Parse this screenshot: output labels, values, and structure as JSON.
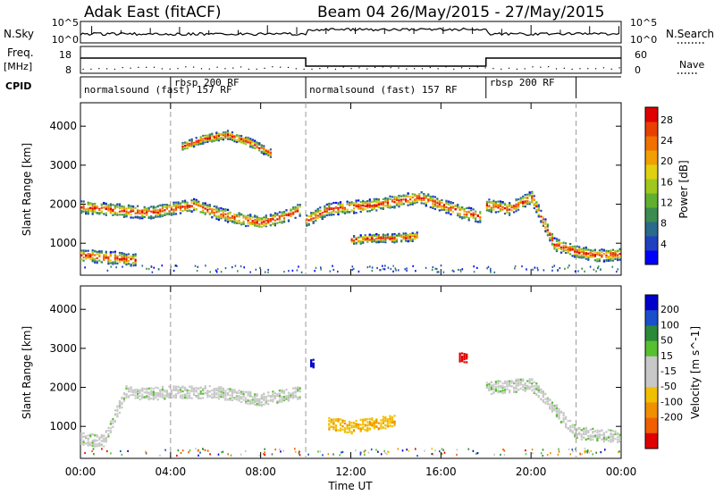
{
  "title": "Adak East (fitACF)",
  "beam_info": "Beam 04 26/May/2015 - 27/May/2015",
  "left_labels": {
    "nsky": "N.Sky",
    "freq": "Freq.",
    "freq_unit": "[MHz]",
    "cpid": "CPID"
  },
  "right_labels": {
    "nsearch": "N.Search",
    "nave": "Nave"
  },
  "nsky_ticks": [
    "10^5",
    "10^0"
  ],
  "nsearch_ticks": [
    "10^5",
    "10^0"
  ],
  "freq_ticks": [
    "18",
    "8"
  ],
  "nave_ticks": [
    "60",
    "0"
  ],
  "cpid_segments": [
    {
      "label": "normalsound (fast) 157 RF",
      "start": 0,
      "end": 4
    },
    {
      "label": "rbsp 200 RF",
      "start": 4,
      "end": 10
    },
    {
      "label": "normalsound (fast) 157 RF",
      "start": 10,
      "end": 18
    },
    {
      "label": "rbsp 200 RF",
      "start": 18,
      "end": 22
    }
  ],
  "x_ticks": [
    "00:00",
    "04:00",
    "08:00",
    "12:00",
    "16:00",
    "20:00",
    "00:00"
  ],
  "x_label": "Time UT",
  "y_label": "Slant Range [km]",
  "y_ticks": [
    "1000",
    "2000",
    "3000",
    "4000"
  ],
  "power_colorbar": {
    "label": "Power [dB]",
    "ticks": [
      "4",
      "8",
      "12",
      "16",
      "20",
      "24",
      "28"
    ],
    "colors": [
      "#0000ff",
      "#2040c0",
      "#2a6a8a",
      "#3c8c50",
      "#60b030",
      "#a0c81c",
      "#e0d010",
      "#f0a000",
      "#f07000",
      "#e84000",
      "#e00000"
    ]
  },
  "velocity_colorbar": {
    "label": "Velocity [m s^-1]",
    "ticks": [
      "200",
      "100",
      "50",
      "15",
      "-15",
      "-50",
      "-100",
      "-200"
    ],
    "colors": [
      "#0000cc",
      "#1a4fcc",
      "#2a8a3a",
      "#56c030",
      "#c8c8c8",
      "#c8c8c8",
      "#f0c000",
      "#f09000",
      "#f06000",
      "#e00000"
    ]
  },
  "chart_data": [
    {
      "type": "heatmap",
      "title": "Power",
      "xlabel": "Time UT",
      "ylabel": "Slant Range [km]",
      "xlim": [
        0,
        24
      ],
      "ylim": [
        180,
        4600
      ],
      "series": [
        {
          "name": "",
          "x": [
            0,
            0.5,
            1,
            1.5,
            2,
            2.5
          ],
          "y": [
            700,
            700,
            650,
            650,
            600,
            600
          ]
        },
        {
          "name": "",
          "x": [
            0,
            1,
            2,
            3,
            4,
            5,
            6,
            7,
            8,
            9,
            9.8
          ],
          "y": [
            1950,
            1900,
            1850,
            1800,
            1900,
            2000,
            1800,
            1650,
            1550,
            1700,
            1900
          ]
        },
        {
          "name": "",
          "x": [
            4.5,
            5.5,
            6.5,
            7.5,
            8.5
          ],
          "y": [
            3500,
            3700,
            3800,
            3600,
            3300
          ]
        },
        {
          "name": "",
          "x": [
            12,
            13,
            14,
            15
          ],
          "y": [
            1100,
            1150,
            1150,
            1200
          ]
        },
        {
          "name": "",
          "x": [
            10,
            11,
            12,
            13,
            14,
            15,
            16,
            17,
            17.8
          ],
          "y": [
            1600,
            1900,
            1950,
            2000,
            2100,
            2200,
            2000,
            1800,
            1700
          ]
        },
        {
          "name": "",
          "x": [
            18,
            19,
            20,
            21,
            22,
            23,
            24
          ],
          "y": [
            2000,
            1900,
            2200,
            1000,
            800,
            700,
            750
          ]
        }
      ]
    },
    {
      "type": "heatmap",
      "title": "Velocity",
      "xlabel": "Time UT",
      "ylabel": "Slant Range [km]",
      "xlim": [
        0,
        24
      ],
      "ylim": [
        180,
        4600
      ],
      "series": [
        {
          "name": "",
          "x": [
            0,
            1,
            2,
            3,
            4,
            6,
            8,
            9.8
          ],
          "y": [
            700,
            650,
            1900,
            1850,
            1900,
            1900,
            1700,
            1900
          ]
        },
        {
          "name": "",
          "x": [
            11,
            12,
            13,
            14
          ],
          "y": [
            1100,
            1000,
            1100,
            1150
          ]
        },
        {
          "name": "",
          "x": [
            10.2,
            10.4
          ],
          "y": [
            2650,
            2600
          ]
        },
        {
          "name": "",
          "x": [
            16.8,
            17.2
          ],
          "y": [
            2800,
            2750
          ]
        },
        {
          "name": "",
          "x": [
            18,
            20,
            22,
            24
          ],
          "y": [
            2000,
            2100,
            850,
            750
          ]
        }
      ]
    }
  ]
}
